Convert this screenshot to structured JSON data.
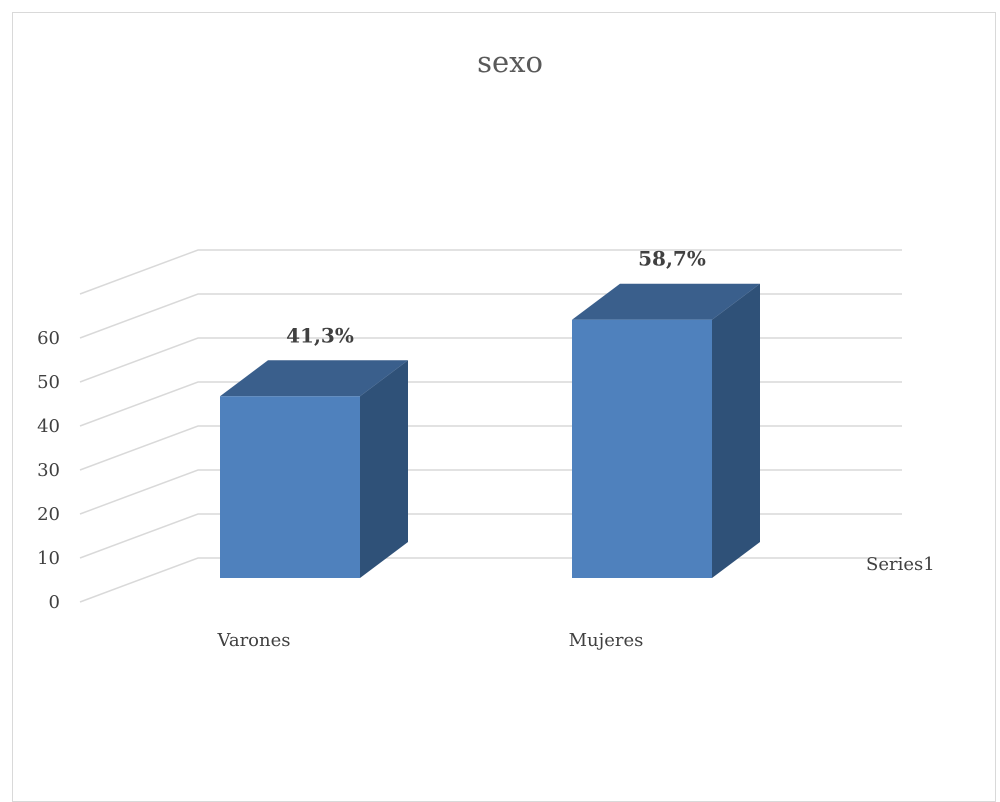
{
  "chart_data": {
    "type": "bar",
    "title": "sexo",
    "categories": [
      "Varones",
      "Mujeres"
    ],
    "series": [
      {
        "name": "Series1",
        "values": [
          41.3,
          58.7
        ],
        "data_labels": [
          "41,3%",
          "58,7%"
        ]
      }
    ],
    "ylim": [
      0,
      60
    ],
    "yticks": [
      0,
      10,
      20,
      30,
      40,
      50,
      60
    ],
    "grid": true,
    "three_d": true,
    "legend": "right",
    "colors": {
      "front": "#4f81bd",
      "top": "#3a5f8c",
      "side": "#2f5178",
      "grid": "#d9d9d9"
    }
  }
}
